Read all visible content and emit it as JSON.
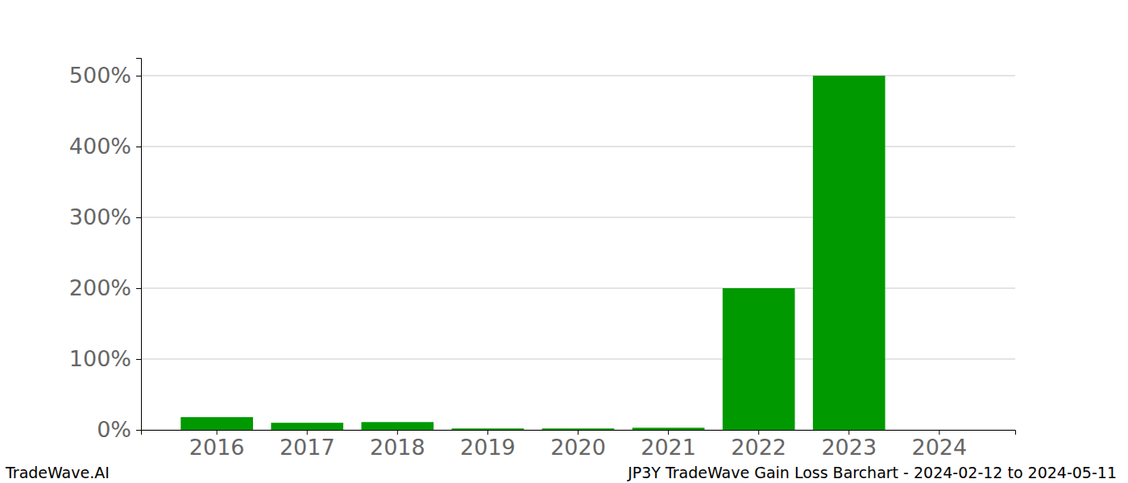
{
  "chart_data": {
    "type": "bar",
    "title": "JP3Y TradeWave Gain Loss Barchart - 2024-02-12 to 2024-05-11",
    "annotations": [
      "TradeWave.AI"
    ],
    "categories": [
      "2016",
      "2017",
      "2018",
      "2019",
      "2020",
      "2021",
      "2022",
      "2023",
      "2024"
    ],
    "values": [
      18,
      10,
      11,
      2,
      2,
      3,
      200,
      500,
      0
    ],
    "color": "#009900",
    "ylim": [
      0,
      525
    ],
    "yticks": [
      {
        "value": 0,
        "label": "0%"
      },
      {
        "value": 100,
        "label": "100%"
      },
      {
        "value": 200,
        "label": "200%"
      },
      {
        "value": 300,
        "label": "300%"
      },
      {
        "value": 400,
        "label": "400%"
      },
      {
        "value": 500,
        "label": "500%"
      }
    ],
    "grid": true
  }
}
